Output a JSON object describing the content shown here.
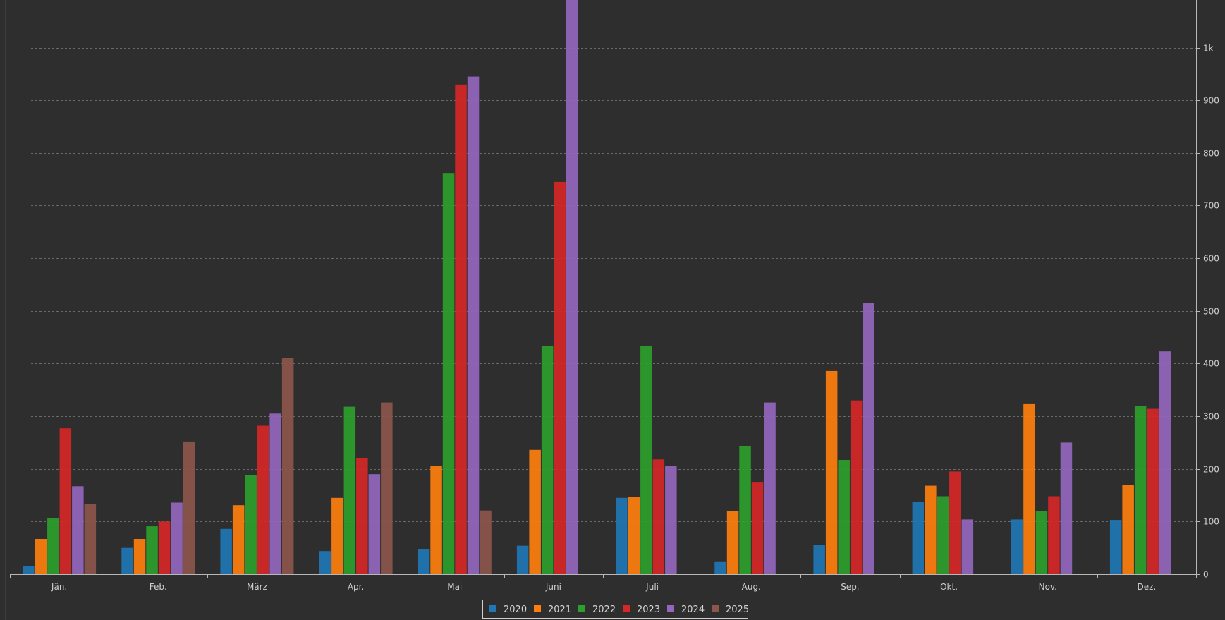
{
  "chart_data": {
    "type": "bar",
    "categories": [
      "Jän.",
      "Feb.",
      "März",
      "Apr.",
      "Mai",
      "Juni",
      "Juli",
      "Aug.",
      "Sep.",
      "Okt.",
      "Nov.",
      "Dez."
    ],
    "series": [
      {
        "name": "2020",
        "color": "#1f77b4",
        "values": [
          15,
          50,
          86,
          44,
          48,
          54,
          145,
          23,
          55,
          138,
          104,
          103
        ]
      },
      {
        "name": "2021",
        "color": "#ff7f0e",
        "values": [
          67,
          67,
          131,
          145,
          206,
          236,
          147,
          120,
          386,
          168,
          323,
          169
        ]
      },
      {
        "name": "2022",
        "color": "#2ca02c",
        "values": [
          107,
          91,
          188,
          318,
          762,
          433,
          434,
          243,
          217,
          148,
          120,
          319
        ]
      },
      {
        "name": "2023",
        "color": "#d62728",
        "values": [
          277,
          100,
          282,
          221,
          930,
          745,
          218,
          174,
          330,
          195,
          148,
          314
        ]
      },
      {
        "name": "2024",
        "color": "#9467bd",
        "values": [
          167,
          136,
          305,
          190,
          945,
          1095,
          205,
          326,
          515,
          104,
          250,
          423
        ]
      },
      {
        "name": "2025",
        "color": "#8c564b",
        "values": [
          133,
          252,
          411,
          326,
          121,
          null,
          null,
          null,
          null,
          null,
          null,
          null
        ]
      }
    ],
    "ylim": [
      0,
      1100
    ],
    "yticks": [
      {
        "value": 0,
        "label": "0"
      },
      {
        "value": 100,
        "label": "100"
      },
      {
        "value": 200,
        "label": "200"
      },
      {
        "value": 300,
        "label": "300"
      },
      {
        "value": 400,
        "label": "400"
      },
      {
        "value": 500,
        "label": "500"
      },
      {
        "value": 600,
        "label": "600"
      },
      {
        "value": 700,
        "label": "700"
      },
      {
        "value": 800,
        "label": "800"
      },
      {
        "value": 900,
        "label": "900"
      },
      {
        "value": 1000,
        "label": "1k"
      }
    ],
    "y_axis_side": "right",
    "grid": true,
    "legend": "bottom-center",
    "title": "",
    "xlabel": "",
    "ylabel": ""
  },
  "theme": {
    "background": "#2e2e2e",
    "grid_color": "#6a6a6a",
    "axis_color": "#b8b8b8",
    "text_color": "#cfcfcf"
  }
}
